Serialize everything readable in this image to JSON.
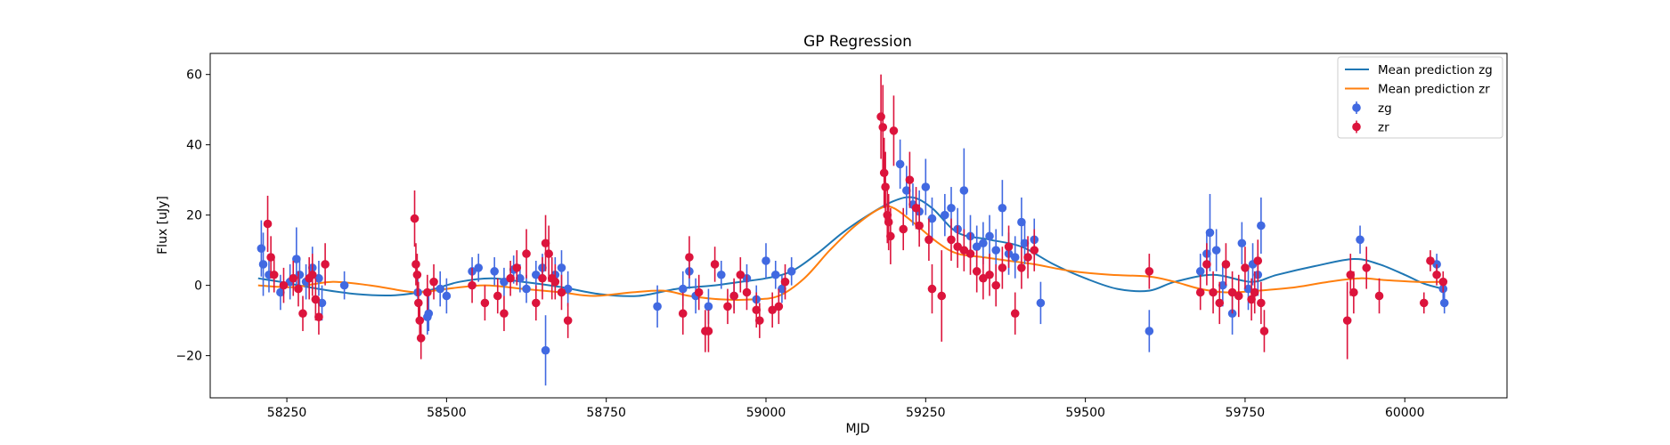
{
  "chart_data": {
    "type": "scatter",
    "title": "GP Regression",
    "xlabel": "MJD",
    "ylabel": "Flux [uJy]",
    "xlim": [
      58130,
      60160
    ],
    "ylim": [
      -32,
      66
    ],
    "xticks": [
      58250,
      58500,
      58750,
      59000,
      59250,
      59500,
      59750,
      60000
    ],
    "yticks": [
      -20,
      0,
      20,
      40,
      60
    ],
    "legend_position": "top-right",
    "lines": [
      {
        "name": "Mean prediction zg",
        "color": "#1f77b4",
        "points": [
          [
            58205,
            2
          ],
          [
            58240,
            1
          ],
          [
            58300,
            -1
          ],
          [
            58360,
            -2.5
          ],
          [
            58420,
            -2.8
          ],
          [
            58470,
            -1.5
          ],
          [
            58520,
            1
          ],
          [
            58570,
            2
          ],
          [
            58620,
            1
          ],
          [
            58680,
            -0.5
          ],
          [
            58740,
            -2.5
          ],
          [
            58800,
            -3
          ],
          [
            58860,
            -1
          ],
          [
            58920,
            0
          ],
          [
            58960,
            1
          ],
          [
            59000,
            2
          ],
          [
            59040,
            4
          ],
          [
            59080,
            9
          ],
          [
            59120,
            15
          ],
          [
            59160,
            20
          ],
          [
            59200,
            24
          ],
          [
            59230,
            25
          ],
          [
            59260,
            22
          ],
          [
            59300,
            15
          ],
          [
            59350,
            13
          ],
          [
            59400,
            11
          ],
          [
            59450,
            6
          ],
          [
            59500,
            2
          ],
          [
            59550,
            -1
          ],
          [
            59600,
            -1.5
          ],
          [
            59640,
            1
          ],
          [
            59700,
            3
          ],
          [
            59760,
            1
          ],
          [
            59800,
            3
          ],
          [
            59860,
            5.5
          ],
          [
            59920,
            7.5
          ],
          [
            59960,
            6
          ],
          [
            60000,
            3
          ],
          [
            60030,
            0.5
          ],
          [
            60060,
            -1
          ]
        ]
      },
      {
        "name": "Mean prediction zr",
        "color": "#ff7f0e",
        "points": [
          [
            58205,
            0
          ],
          [
            58260,
            -0.5
          ],
          [
            58320,
            1
          ],
          [
            58380,
            0
          ],
          [
            58430,
            -1.5
          ],
          [
            58460,
            -2
          ],
          [
            58500,
            -1
          ],
          [
            58560,
            0
          ],
          [
            58620,
            -1
          ],
          [
            58680,
            -2
          ],
          [
            58730,
            -3
          ],
          [
            58790,
            -2
          ],
          [
            58840,
            -1.5
          ],
          [
            58880,
            -3
          ],
          [
            58930,
            -4
          ],
          [
            58980,
            -4
          ],
          [
            59020,
            -3
          ],
          [
            59060,
            2
          ],
          [
            59100,
            10
          ],
          [
            59140,
            17
          ],
          [
            59180,
            22
          ],
          [
            59200,
            22
          ],
          [
            59230,
            18
          ],
          [
            59270,
            12
          ],
          [
            59300,
            9
          ],
          [
            59340,
            8
          ],
          [
            59380,
            7
          ],
          [
            59420,
            6
          ],
          [
            59480,
            4
          ],
          [
            59540,
            3
          ],
          [
            59600,
            2.5
          ],
          [
            59640,
            1
          ],
          [
            59680,
            -1
          ],
          [
            59720,
            -2
          ],
          [
            59770,
            -1.5
          ],
          [
            59830,
            -0.5
          ],
          [
            59880,
            1
          ],
          [
            59930,
            2
          ],
          [
            59970,
            1.5
          ],
          [
            60020,
            1
          ],
          [
            60060,
            1
          ]
        ]
      }
    ],
    "series": [
      {
        "name": "zg",
        "color": "#4169e1",
        "points": [
          [
            58210,
            10.5,
            8
          ],
          [
            58213,
            6,
            9
          ],
          [
            58222,
            3,
            5
          ],
          [
            58240,
            -2,
            5
          ],
          [
            58255,
            1,
            5
          ],
          [
            58265,
            7.5,
            9
          ],
          [
            58270,
            3,
            5
          ],
          [
            58280,
            1,
            5
          ],
          [
            58290,
            5,
            6
          ],
          [
            58300,
            2,
            5
          ],
          [
            58305,
            -5,
            5
          ],
          [
            58340,
            0,
            4
          ],
          [
            58455,
            -2,
            4
          ],
          [
            58470,
            -9,
            5
          ],
          [
            58472,
            -8,
            5
          ],
          [
            58490,
            -1,
            5
          ],
          [
            58500,
            -3,
            5
          ],
          [
            58540,
            4,
            4
          ],
          [
            58550,
            5,
            4
          ],
          [
            58575,
            4,
            4
          ],
          [
            58590,
            1,
            4
          ],
          [
            58605,
            4.5,
            4
          ],
          [
            58615,
            2,
            4
          ],
          [
            58625,
            -1,
            4
          ],
          [
            58640,
            3,
            4
          ],
          [
            58650,
            5,
            4
          ],
          [
            58655,
            -18.5,
            10
          ],
          [
            58670,
            3,
            5
          ],
          [
            58680,
            5,
            5
          ],
          [
            58690,
            -1,
            5
          ],
          [
            58830,
            -6,
            6
          ],
          [
            58870,
            -1,
            5
          ],
          [
            58880,
            4,
            5
          ],
          [
            58890,
            -3,
            5
          ],
          [
            58910,
            -6,
            5
          ],
          [
            58930,
            3,
            4
          ],
          [
            58950,
            -3,
            4
          ],
          [
            58970,
            2,
            4
          ],
          [
            58985,
            -4,
            4
          ],
          [
            59000,
            7,
            5
          ],
          [
            59015,
            3,
            4
          ],
          [
            59025,
            -1,
            4
          ],
          [
            59040,
            4,
            4
          ],
          [
            59210,
            34.5,
            7
          ],
          [
            59220,
            27,
            7
          ],
          [
            59230,
            23,
            6
          ],
          [
            59240,
            21,
            6
          ],
          [
            59250,
            28,
            8
          ],
          [
            59260,
            19,
            6
          ],
          [
            59280,
            20,
            6
          ],
          [
            59290,
            22,
            6
          ],
          [
            59300,
            16,
            6
          ],
          [
            59310,
            27,
            12
          ],
          [
            59320,
            14,
            6
          ],
          [
            59330,
            11,
            6
          ],
          [
            59340,
            12,
            6
          ],
          [
            59350,
            14,
            6
          ],
          [
            59360,
            10,
            6
          ],
          [
            59370,
            22,
            8
          ],
          [
            59380,
            9,
            6
          ],
          [
            59390,
            8,
            6
          ],
          [
            59400,
            18,
            7
          ],
          [
            59405,
            12,
            6
          ],
          [
            59420,
            13,
            6
          ],
          [
            59430,
            -5,
            6
          ],
          [
            59600,
            -13,
            6
          ],
          [
            59680,
            4,
            5
          ],
          [
            59690,
            9,
            6
          ],
          [
            59695,
            15,
            11
          ],
          [
            59705,
            10,
            6
          ],
          [
            59715,
            0,
            6
          ],
          [
            59730,
            -8,
            6
          ],
          [
            59745,
            12,
            6
          ],
          [
            59755,
            -1,
            6
          ],
          [
            59762,
            6,
            6
          ],
          [
            59770,
            3,
            6
          ],
          [
            59775,
            17,
            8
          ],
          [
            59930,
            13,
            4
          ],
          [
            60050,
            6,
            3
          ],
          [
            60060,
            -1,
            3
          ],
          [
            60062,
            -5,
            3
          ]
        ]
      },
      {
        "name": "zr",
        "color": "#dc143c",
        "points": [
          [
            58220,
            17.5,
            8
          ],
          [
            58225,
            8,
            6
          ],
          [
            58230,
            3,
            5
          ],
          [
            58245,
            0,
            5
          ],
          [
            58260,
            2,
            5
          ],
          [
            58268,
            -1,
            5
          ],
          [
            58275,
            -8,
            5
          ],
          [
            58285,
            2,
            6
          ],
          [
            58290,
            3,
            6
          ],
          [
            58295,
            -4,
            6
          ],
          [
            58300,
            -9,
            5
          ],
          [
            58310,
            6,
            6
          ],
          [
            58450,
            19,
            8
          ],
          [
            58452,
            6,
            6
          ],
          [
            58454,
            3,
            6
          ],
          [
            58456,
            -5,
            6
          ],
          [
            58458,
            -10,
            6
          ],
          [
            58460,
            -15,
            6
          ],
          [
            58470,
            -2,
            5
          ],
          [
            58480,
            1,
            5
          ],
          [
            58540,
            0,
            5
          ],
          [
            58560,
            -5,
            5
          ],
          [
            58580,
            -3,
            5
          ],
          [
            58590,
            -8,
            5
          ],
          [
            58600,
            2,
            5
          ],
          [
            58610,
            5,
            5
          ],
          [
            58625,
            9,
            7
          ],
          [
            58640,
            -5,
            5
          ],
          [
            58650,
            2,
            6
          ],
          [
            58655,
            12,
            8
          ],
          [
            58660,
            9,
            8
          ],
          [
            58665,
            2,
            6
          ],
          [
            58670,
            1,
            5
          ],
          [
            58680,
            -2,
            5
          ],
          [
            58690,
            -10,
            5
          ],
          [
            58870,
            -8,
            6
          ],
          [
            58880,
            8,
            6
          ],
          [
            58895,
            -2,
            5
          ],
          [
            58905,
            -13,
            6
          ],
          [
            58910,
            -13,
            6
          ],
          [
            58920,
            6,
            5
          ],
          [
            58940,
            -6,
            5
          ],
          [
            58950,
            -3,
            5
          ],
          [
            58960,
            3,
            5
          ],
          [
            58970,
            -2,
            5
          ],
          [
            58985,
            -7,
            5
          ],
          [
            58990,
            -10,
            5
          ],
          [
            59010,
            -7,
            5
          ],
          [
            59020,
            -6,
            5
          ],
          [
            59030,
            1,
            5
          ],
          [
            59180,
            48,
            12
          ],
          [
            59183,
            45,
            12
          ],
          [
            59185,
            32,
            10
          ],
          [
            59187,
            28,
            10
          ],
          [
            59190,
            20,
            8
          ],
          [
            59192,
            18,
            8
          ],
          [
            59195,
            14,
            8
          ],
          [
            59200,
            44,
            10
          ],
          [
            59215,
            16,
            6
          ],
          [
            59225,
            30,
            8
          ],
          [
            59235,
            22,
            6
          ],
          [
            59240,
            17,
            6
          ],
          [
            59255,
            13,
            6
          ],
          [
            59260,
            -1,
            7
          ],
          [
            59275,
            -3,
            13
          ],
          [
            59290,
            13,
            6
          ],
          [
            59300,
            11,
            6
          ],
          [
            59310,
            10,
            6
          ],
          [
            59320,
            9,
            6
          ],
          [
            59330,
            4,
            6
          ],
          [
            59340,
            2,
            6
          ],
          [
            59350,
            3,
            6
          ],
          [
            59360,
            0,
            6
          ],
          [
            59370,
            5,
            6
          ],
          [
            59380,
            11,
            6
          ],
          [
            59390,
            -8,
            6
          ],
          [
            59400,
            5,
            6
          ],
          [
            59410,
            8,
            6
          ],
          [
            59420,
            10,
            6
          ],
          [
            59600,
            4,
            5
          ],
          [
            59680,
            -2,
            5
          ],
          [
            59690,
            6,
            6
          ],
          [
            59700,
            -2,
            6
          ],
          [
            59710,
            -5,
            6
          ],
          [
            59720,
            6,
            6
          ],
          [
            59730,
            -2,
            6
          ],
          [
            59740,
            -3,
            6
          ],
          [
            59750,
            5,
            6
          ],
          [
            59760,
            -4,
            6
          ],
          [
            59765,
            -2,
            6
          ],
          [
            59770,
            7,
            6
          ],
          [
            59775,
            -5,
            6
          ],
          [
            59780,
            -13,
            6
          ],
          [
            59910,
            -10,
            11
          ],
          [
            59915,
            3,
            6
          ],
          [
            59920,
            -2,
            6
          ],
          [
            59940,
            5,
            6
          ],
          [
            59960,
            -3,
            5
          ],
          [
            60030,
            -5,
            3
          ],
          [
            60040,
            7,
            3
          ],
          [
            60050,
            3,
            3
          ],
          [
            60060,
            1,
            3
          ]
        ]
      }
    ]
  }
}
